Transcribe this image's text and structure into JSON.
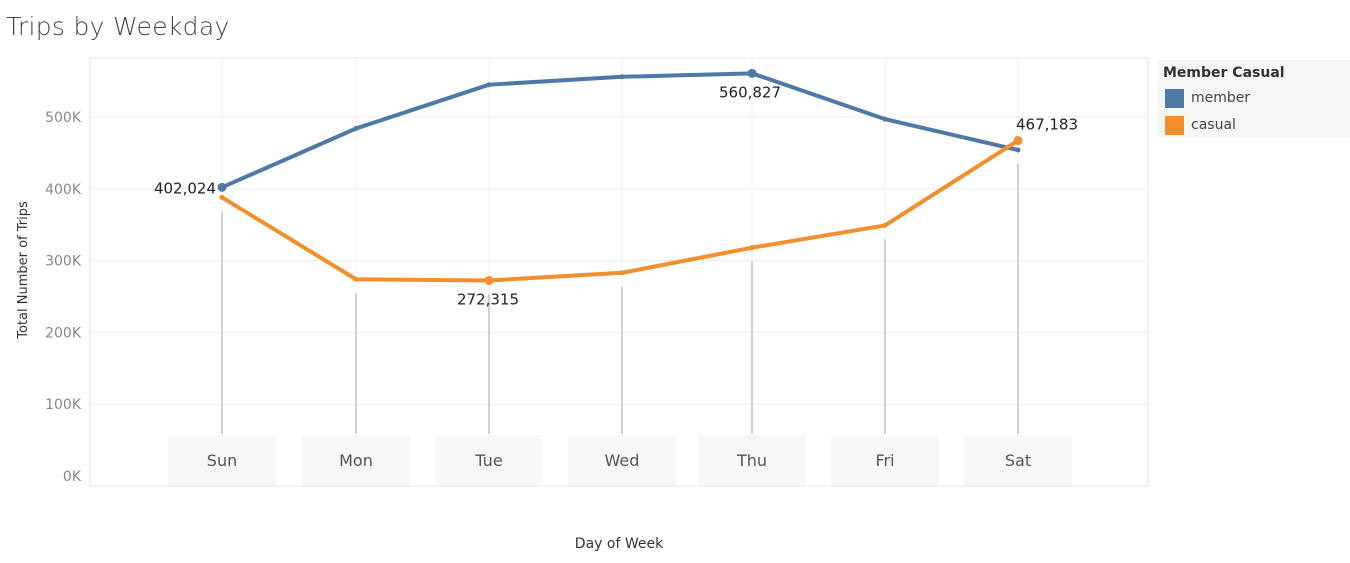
{
  "chart_data": {
    "type": "line",
    "title": "Trips by Weekday",
    "xlabel": "Day of Week",
    "ylabel": "Total Number of Trips",
    "categories": [
      "Sun",
      "Mon",
      "Tue",
      "Wed",
      "Thu",
      "Fri",
      "Sat"
    ],
    "ylim": [
      0,
      590000
    ],
    "yticks": [
      0,
      100000,
      200000,
      300000,
      400000,
      500000
    ],
    "ytick_labels": [
      "0K",
      "100K",
      "200K",
      "300K",
      "400K",
      "500K"
    ],
    "grid": true,
    "legend": {
      "title": "Member Casual",
      "placement": "right",
      "items": [
        "member",
        "casual"
      ]
    },
    "series": [
      {
        "name": "member",
        "color": "#4e79a7",
        "values": [
          402024,
          484000,
          545000,
          556000,
          560827,
          497000,
          454000
        ]
      },
      {
        "name": "casual",
        "color": "#f28e2b",
        "values": [
          388000,
          274000,
          272315,
          283000,
          318000,
          349000,
          467183
        ]
      }
    ],
    "annotations": [
      {
        "series": "member",
        "category": "Sun",
        "text": "402,024"
      },
      {
        "series": "member",
        "category": "Thu",
        "text": "560,827"
      },
      {
        "series": "casual",
        "category": "Tue",
        "text": "272,315"
      },
      {
        "series": "casual",
        "category": "Sat",
        "text": "467,183"
      }
    ]
  }
}
